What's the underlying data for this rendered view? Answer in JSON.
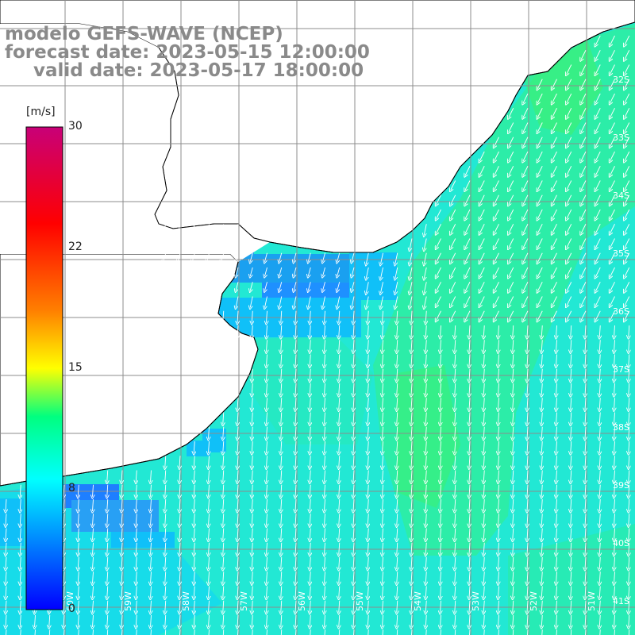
{
  "title": {
    "line1": "modelo GEFS-WAVE (NCEP)",
    "line2": "forecast date: 2023-05-15 12:00:00",
    "line3": "valid date: 2023-05-17 18:00:00"
  },
  "colorbar": {
    "unit": "[m/s]",
    "ticks": [
      "30",
      "22",
      "15",
      "8",
      "0"
    ],
    "min": 0,
    "max": 30,
    "colors": [
      "#0000ff",
      "#00ffff",
      "#00c800",
      "#ffff00",
      "#ff7f00",
      "#ff0000",
      "#c80078"
    ]
  },
  "map": {
    "lat_labels": [
      "32S",
      "33S",
      "34S",
      "35S",
      "36S",
      "37S",
      "38S",
      "39S",
      "40S",
      "41S"
    ],
    "lon_labels": [
      "60W",
      "59W",
      "58W",
      "57W",
      "56W",
      "55W",
      "54W",
      "53W",
      "52W",
      "51W"
    ],
    "ocean_color": "#20e4d2",
    "land_color": "#ffffff",
    "coast_color": "#000000",
    "grid_color": "#8c8c8c",
    "arrow_color": "#ffffff"
  }
}
